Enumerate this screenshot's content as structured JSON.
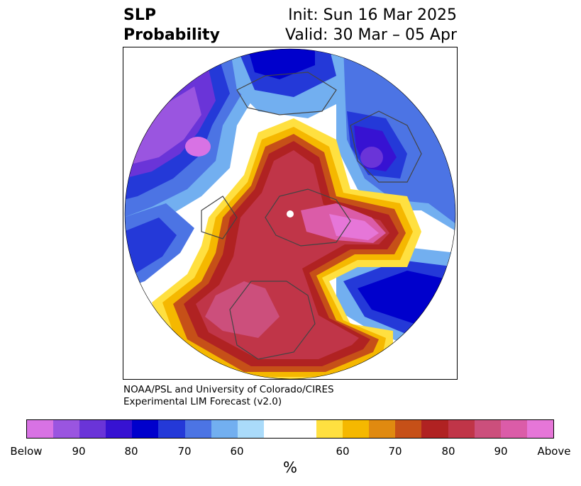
{
  "header": {
    "title_line1": "SLP",
    "title_line2": "Probability",
    "init_text": "Init: Sun 16 Mar 2025",
    "valid_text": "Valid: 30 Mar – 05 Apr"
  },
  "credit": {
    "line1": "NOAA/PSL and University of Colorado/CIRES",
    "line2": "Experimental LIM Forecast (v2.0)"
  },
  "colorbar": {
    "colors": [
      "#d872e4",
      "#9a55e0",
      "#6a34d8",
      "#3712d2",
      "#0000cc",
      "#2439d8",
      "#4c74e4",
      "#72aff0",
      "#aadbfa",
      "#ffffff",
      "#ffffff",
      "#ffe040",
      "#f5b800",
      "#e08a10",
      "#c65018",
      "#b02222",
      "#c03548",
      "#cc4f7c",
      "#db5ca8",
      "#e676d8"
    ],
    "labels": [
      "Below",
      "90",
      "80",
      "70",
      "60",
      "60",
      "70",
      "80",
      "90",
      "Above"
    ],
    "unit": "%"
  },
  "map": {
    "projection": "north-polar-stereographic",
    "palette": {
      "below_strong": "#d872e4",
      "below_purple": "#9a55e0",
      "below_violet": "#6a34d8",
      "below_indigo": "#3712d2",
      "below_blue": "#0000cc",
      "below_mid": "#2439d8",
      "below_light": "#4c74e4",
      "below_sky": "#72aff0",
      "below_pale": "#aadbfa",
      "neutral": "#ffffff",
      "above_yellow": "#ffe040",
      "above_gold": "#f5b800",
      "above_orange": "#e08a10",
      "above_rust": "#c65018",
      "above_red": "#b02222",
      "above_crimson": "#c03548",
      "above_rose": "#cc4f7c",
      "above_pink": "#db5ca8",
      "above_strong": "#e676d8",
      "coast_color": "#444444"
    }
  }
}
